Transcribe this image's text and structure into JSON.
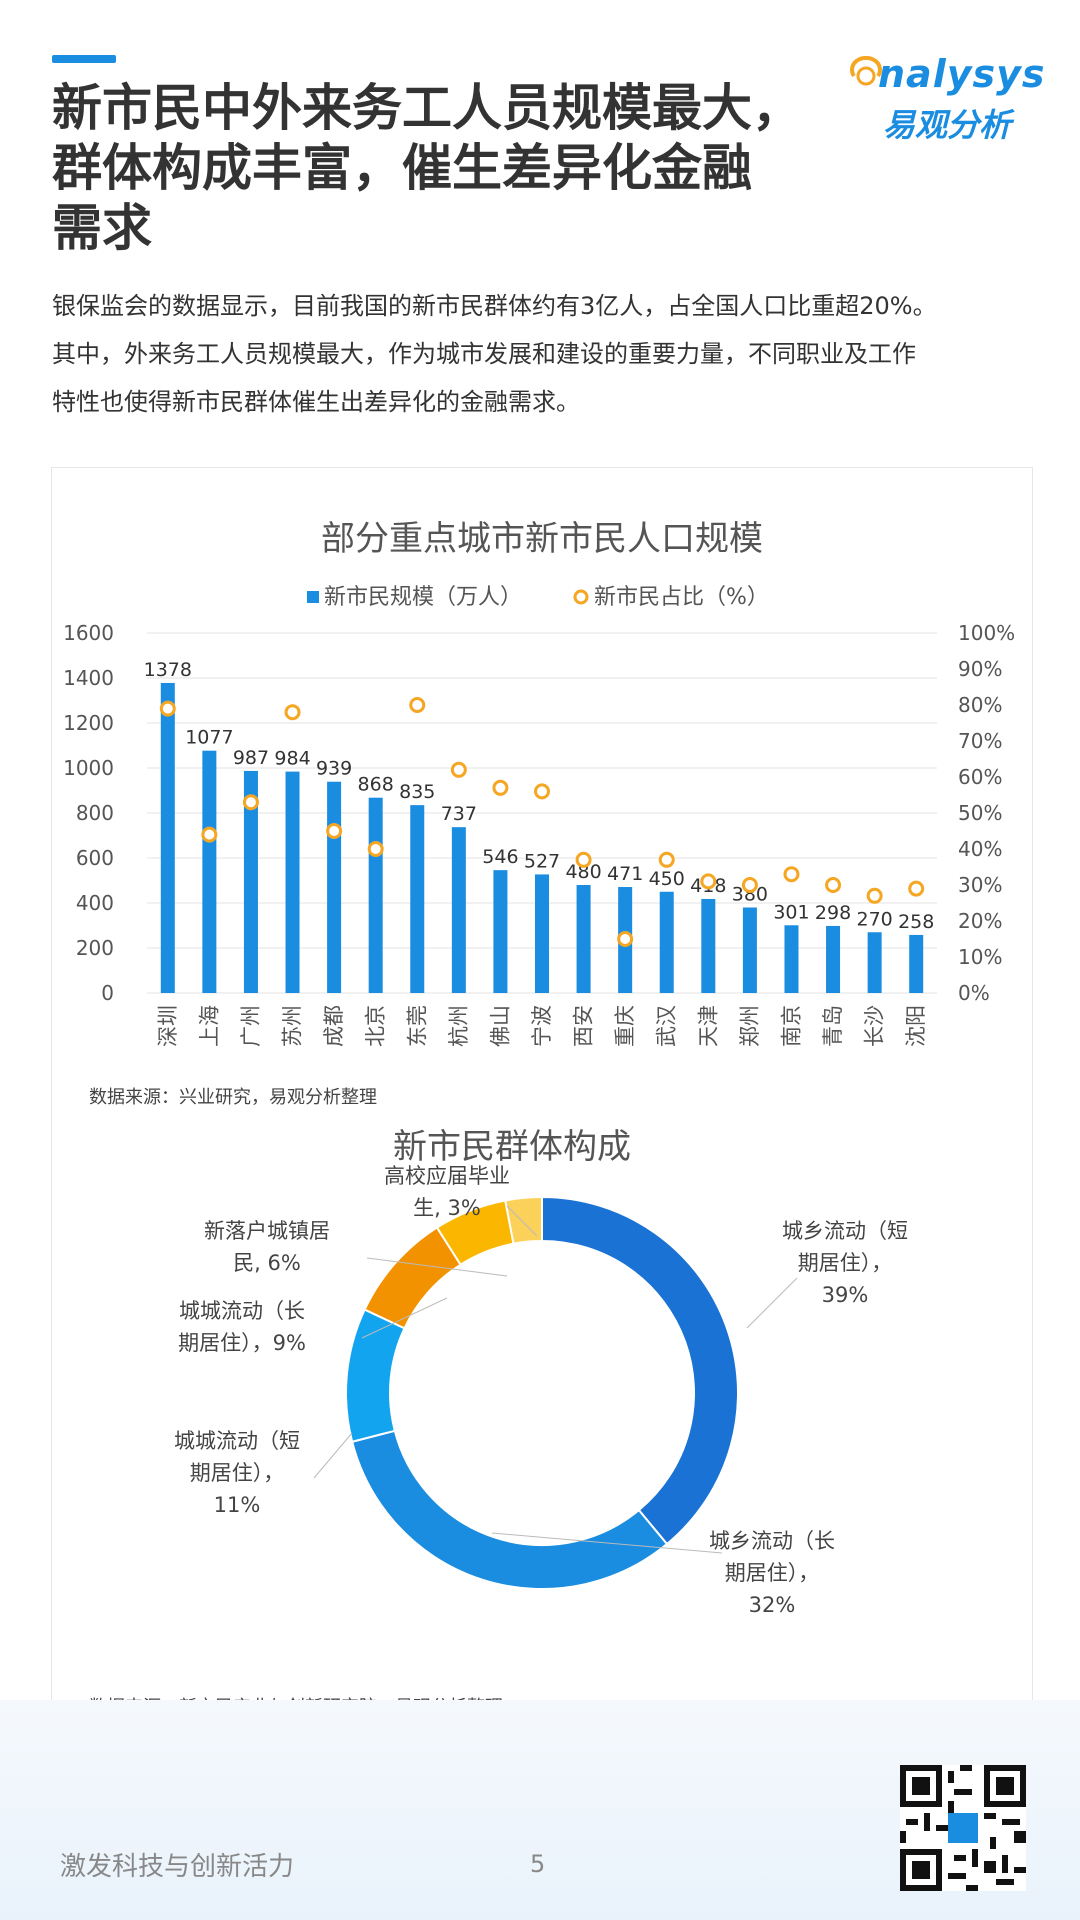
{
  "header": {
    "title_lines": [
      "新市民中外来务工人员规模最大，",
      "群体构成丰富，催生差异化金融",
      "需求"
    ],
    "logo_en": "nalysys",
    "logo_cn": "易观分析"
  },
  "intro": {
    "lines": [
      "银保监会的数据显示，目前我国的新市民群体约有3亿人，占全国人口比重超20%。",
      "其中，外来务工人员规模最大，作为城市发展和建设的重要力量，不同职业及工作",
      "特性也使得新市民群体催生出差异化的金融需求。"
    ]
  },
  "colors": {
    "accent": "#1a8de0",
    "bar": "#1a8de0",
    "point": "#f5a623"
  },
  "chart_data": [
    {
      "type": "bar",
      "title": "部分重点城市新市民人口规模",
      "categories": [
        "深圳",
        "上海",
        "广州",
        "苏州",
        "成都",
        "北京",
        "东莞",
        "杭州",
        "佛山",
        "宁波",
        "西安",
        "重庆",
        "武汉",
        "天津",
        "郑州",
        "南京",
        "青岛",
        "长沙",
        "沈阳"
      ],
      "series": [
        {
          "name": "新市民规模（万人）",
          "type": "bar",
          "axis": "left",
          "values": [
            1378,
            1077,
            987,
            984,
            939,
            868,
            835,
            737,
            546,
            527,
            480,
            471,
            450,
            418,
            380,
            301,
            298,
            270,
            258
          ]
        },
        {
          "name": "新市民占比（%）",
          "type": "scatter",
          "axis": "right",
          "values": [
            79,
            44,
            53,
            78,
            45,
            40,
            80,
            62,
            57,
            56,
            37,
            15,
            37,
            31,
            30,
            33,
            30,
            27,
            29
          ]
        }
      ],
      "ylim": [
        0,
        1600
      ],
      "yticks": [
        "0",
        "200",
        "400",
        "600",
        "800",
        "1000",
        "1200",
        "1400",
        "1600"
      ],
      "y2lim": [
        0,
        100
      ],
      "y2ticks": [
        "0%",
        "10%",
        "20%",
        "30%",
        "40%",
        "50%",
        "60%",
        "70%",
        "80%",
        "90%",
        "100%"
      ],
      "legend": "top",
      "grid": true,
      "source": "数据来源：兴业研究，易观分析整理"
    },
    {
      "type": "pie",
      "donut": true,
      "title": "新市民群体构成",
      "slices": [
        {
          "label_lines": [
            "城乡流动（短",
            "期居住），",
            "39%"
          ],
          "value": 39,
          "color": "#1a73d4"
        },
        {
          "label_lines": [
            "城乡流动（长",
            "期居住），",
            "32%"
          ],
          "value": 32,
          "color": "#1a8de0"
        },
        {
          "label_lines": [
            "城城流动（短",
            "期居住），",
            "11%"
          ],
          "value": 11,
          "color": "#12a4ee"
        },
        {
          "label_lines": [
            "城城流动（长",
            "期居住），9%"
          ],
          "value": 9,
          "color": "#f39200"
        },
        {
          "label_lines": [
            "新落户城镇居",
            "民, 6%"
          ],
          "value": 6,
          "color": "#fbb700"
        },
        {
          "label_lines": [
            "高校应届毕业",
            "生, 3%"
          ],
          "value": 3,
          "color": "#fcd15a"
        }
      ],
      "source": "数据来源：新市民产业与创新研究院，易观分析整理"
    }
  ],
  "footer": {
    "slogan": "激发科技与创新活力",
    "page": "5"
  }
}
